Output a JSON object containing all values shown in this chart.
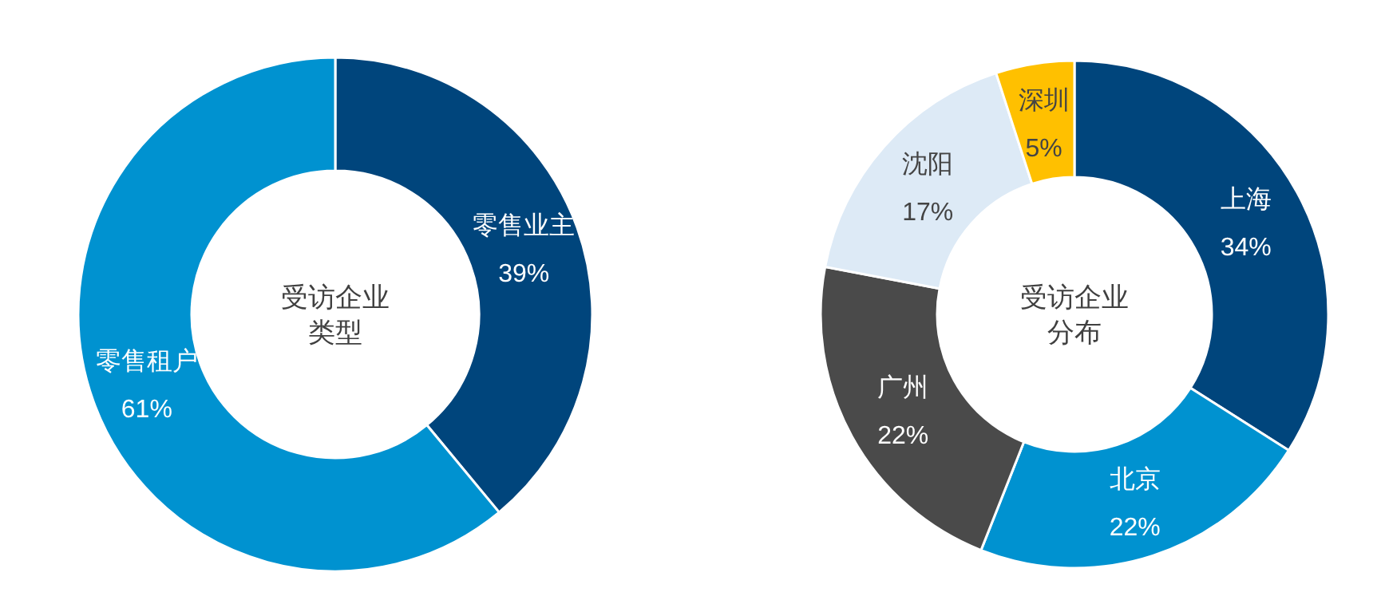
{
  "chart_data": [
    {
      "type": "donut",
      "title": "受访企业类型",
      "categories": [
        "零售业主",
        "零售租户"
      ],
      "values": [
        39,
        61
      ],
      "value_labels": [
        "39%",
        "61%"
      ],
      "colors": [
        "#00457c",
        "#0092d0"
      ],
      "legend": false
    },
    {
      "type": "donut",
      "title": "受访企业分布",
      "categories": [
        "上海",
        "北京",
        "广州",
        "沈阳",
        "深圳"
      ],
      "values": [
        34,
        22,
        22,
        17,
        5
      ],
      "value_labels": [
        "34%",
        "22%",
        "22%",
        "17%",
        "5%"
      ],
      "colors": [
        "#00457c",
        "#0092d0",
        "#4a4a4a",
        "#ddeaf6",
        "#ffc000"
      ],
      "legend": false
    }
  ]
}
